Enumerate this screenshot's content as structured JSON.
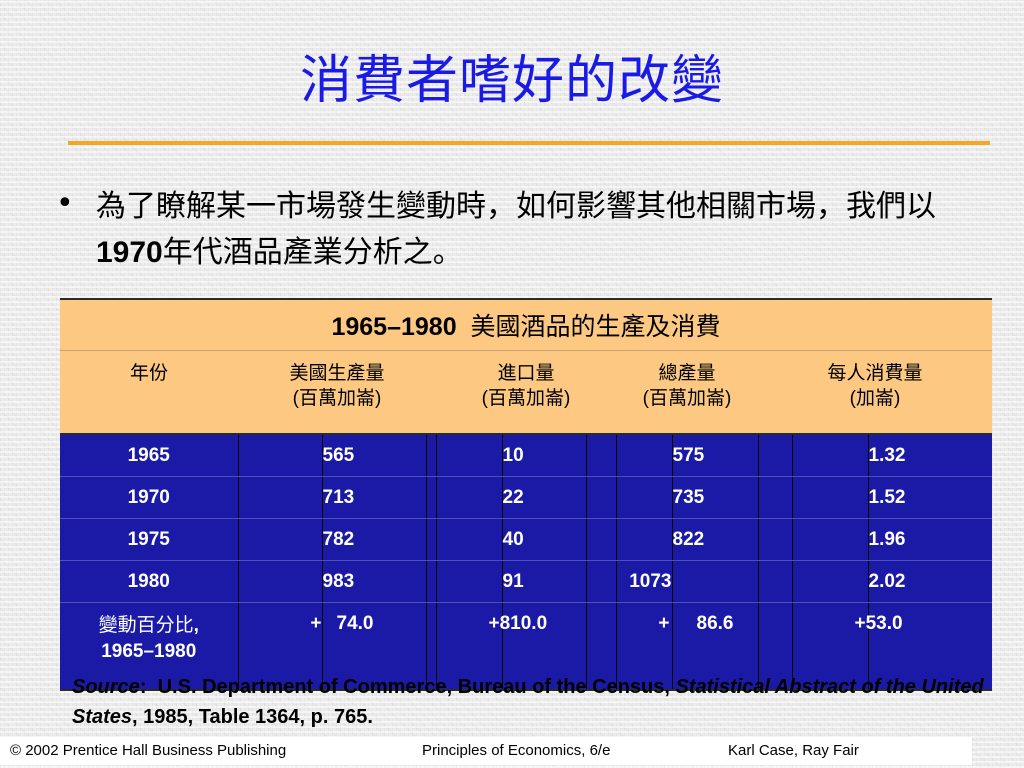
{
  "title": "消費者嗜好的改變",
  "bullet": {
    "text_before": "為了瞭解某一市場發生變動時，如何影響其他相關市場，我們以",
    "year_bold": "1970",
    "text_after": "年代酒品產業分析之。"
  },
  "table": {
    "caption_years": "1965–1980",
    "caption_text": "美國酒品的生產及消費",
    "headers": [
      {
        "line1": "年份",
        "line2": ""
      },
      {
        "line1": "美國生產量",
        "line2": "(百萬加崙)"
      },
      {
        "line1": "進口量",
        "line2": "(百萬加崙)"
      },
      {
        "line1": "總產量",
        "line2": "(百萬加崙)"
      },
      {
        "line1": "每人消費量",
        "line2": "(加崙)"
      }
    ],
    "rows": [
      {
        "year": "1965",
        "production": "565",
        "imports": "10",
        "total": "575",
        "per_capita": "1.32"
      },
      {
        "year": "1970",
        "production": "713",
        "imports": "22",
        "total": "735",
        "per_capita": "1.52"
      },
      {
        "year": "1975",
        "production": "782",
        "imports": "40",
        "total": "822",
        "per_capita": "1.96"
      },
      {
        "year": "1980",
        "production": "983",
        "imports": "91",
        "total": "1073",
        "per_capita": "2.02"
      }
    ],
    "change_row": {
      "label_line1": "變動百分比",
      "label_line1_suffix": ",",
      "label_line2": "1965–1980",
      "production_sign": "+",
      "production": "74.0",
      "imports": "+810.0",
      "total_sign": "+",
      "total": "86.6",
      "per_capita": "+53.0"
    }
  },
  "source": {
    "label": "Source",
    "colon": ":",
    "text1": "U.S. Department of Commerce, Bureau of the Census,",
    "italic": "Statistical Abstract of the United States",
    "text2": ", 1985, Table 1364, p. 765."
  },
  "footer": {
    "copyright": "© 2002 Prentice Hall Business Publishing",
    "book": "Principles of Economics, 6/e",
    "authors": "Karl Case, Ray Fair"
  },
  "colors": {
    "title": "#1a1ae6",
    "rule": "#f0a828",
    "table_header_bg": "#fdc982",
    "table_body_bg": "#1a1aa6"
  }
}
